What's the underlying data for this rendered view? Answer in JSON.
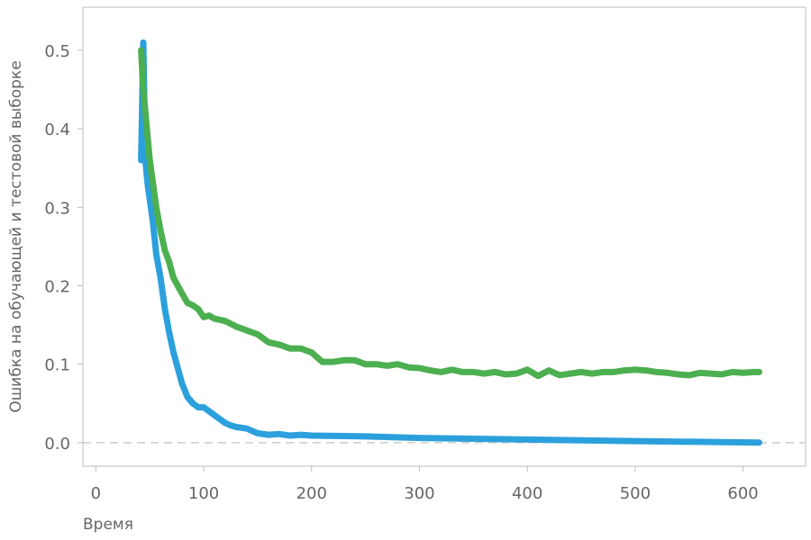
{
  "chart_data": {
    "type": "line",
    "title": "",
    "xlabel": "Время",
    "ylabel": "Ошибка на обучающей и тестовой выборке",
    "xlim": [
      -12,
      658
    ],
    "ylim": [
      -0.03,
      0.555
    ],
    "xticks": [
      0,
      100,
      200,
      300,
      400,
      500,
      600
    ],
    "yticks": [
      0.0,
      0.1,
      0.2,
      0.3,
      0.4,
      0.5
    ],
    "ytick_labels": [
      "0.0",
      "0.1",
      "0.2",
      "0.3",
      "0.4",
      "0.5"
    ],
    "grid": false,
    "reference_line": {
      "y": 0.0,
      "style": "dashed",
      "color": "#cccccc"
    },
    "series": [
      {
        "color": "#2ca0dc",
        "x": [
          42,
          44,
          46,
          48,
          50,
          53,
          56,
          60,
          64,
          68,
          72,
          76,
          80,
          85,
          90,
          95,
          100,
          105,
          110,
          115,
          120,
          125,
          130,
          140,
          150,
          160,
          170,
          180,
          190,
          200,
          250,
          300,
          400,
          500,
          615
        ],
        "y": [
          0.36,
          0.51,
          0.36,
          0.33,
          0.31,
          0.28,
          0.24,
          0.21,
          0.17,
          0.14,
          0.115,
          0.095,
          0.075,
          0.058,
          0.05,
          0.045,
          0.045,
          0.04,
          0.035,
          0.03,
          0.025,
          0.022,
          0.02,
          0.018,
          0.012,
          0.01,
          0.011,
          0.009,
          0.01,
          0.009,
          0.008,
          0.006,
          0.004,
          0.002,
          0.0
        ]
      },
      {
        "color": "#4caf50",
        "x": [
          42,
          44,
          46,
          48,
          50,
          53,
          56,
          60,
          64,
          68,
          72,
          76,
          80,
          85,
          90,
          95,
          100,
          105,
          110,
          120,
          130,
          140,
          150,
          160,
          170,
          180,
          190,
          200,
          210,
          220,
          230,
          240,
          250,
          260,
          270,
          280,
          290,
          300,
          310,
          320,
          330,
          340,
          350,
          360,
          370,
          380,
          390,
          400,
          410,
          420,
          430,
          440,
          450,
          460,
          470,
          480,
          490,
          500,
          510,
          520,
          530,
          540,
          550,
          560,
          570,
          580,
          590,
          600,
          610,
          615
        ],
        "y": [
          0.5,
          0.45,
          0.42,
          0.39,
          0.36,
          0.33,
          0.3,
          0.27,
          0.245,
          0.23,
          0.21,
          0.2,
          0.19,
          0.178,
          0.175,
          0.17,
          0.16,
          0.162,
          0.158,
          0.155,
          0.148,
          0.143,
          0.138,
          0.128,
          0.125,
          0.12,
          0.12,
          0.115,
          0.103,
          0.103,
          0.105,
          0.105,
          0.1,
          0.1,
          0.098,
          0.1,
          0.096,
          0.095,
          0.092,
          0.09,
          0.093,
          0.09,
          0.09,
          0.088,
          0.09,
          0.087,
          0.088,
          0.093,
          0.085,
          0.092,
          0.086,
          0.088,
          0.09,
          0.088,
          0.09,
          0.09,
          0.092,
          0.093,
          0.092,
          0.09,
          0.089,
          0.087,
          0.086,
          0.089,
          0.088,
          0.087,
          0.09,
          0.089,
          0.09,
          0.09
        ]
      }
    ]
  }
}
